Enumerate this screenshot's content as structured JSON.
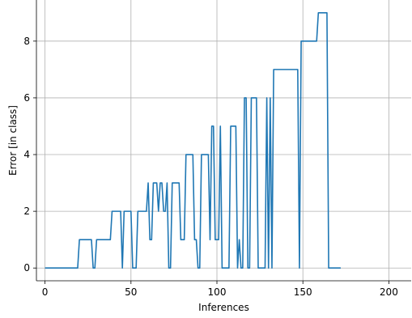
{
  "chart_data": {
    "type": "line",
    "title": "",
    "xlabel": "Inferences",
    "ylabel": "Error [in class]",
    "xlim": [
      -5,
      213
    ],
    "ylim": [
      -0.45,
      9.45
    ],
    "xticks": [
      0,
      50,
      100,
      150,
      200
    ],
    "yticks": [
      0,
      2,
      4,
      6,
      8
    ],
    "grid": true,
    "colors": {
      "line": "#1f77b4"
    },
    "series": [
      {
        "values": [
          [
            0,
            0
          ],
          [
            19,
            0
          ],
          [
            20,
            1
          ],
          [
            27,
            1
          ],
          [
            28,
            0
          ],
          [
            29,
            0
          ],
          [
            30,
            1
          ],
          [
            38,
            1
          ],
          [
            39,
            2
          ],
          [
            44,
            2
          ],
          [
            45,
            0
          ],
          [
            46,
            2
          ],
          [
            50,
            2
          ],
          [
            51,
            0
          ],
          [
            53,
            0
          ],
          [
            54,
            2
          ],
          [
            59,
            2
          ],
          [
            60,
            3
          ],
          [
            61,
            1
          ],
          [
            62,
            1
          ],
          [
            63,
            3
          ],
          [
            65,
            3
          ],
          [
            66,
            2
          ],
          [
            67,
            3
          ],
          [
            68,
            3
          ],
          [
            69,
            2
          ],
          [
            70,
            2
          ],
          [
            71,
            3
          ],
          [
            72,
            0
          ],
          [
            73,
            0
          ],
          [
            74,
            3
          ],
          [
            78,
            3
          ],
          [
            79,
            1
          ],
          [
            81,
            1
          ],
          [
            82,
            4
          ],
          [
            86,
            4
          ],
          [
            87,
            1
          ],
          [
            88,
            1
          ],
          [
            89,
            0
          ],
          [
            90,
            0
          ],
          [
            91,
            4
          ],
          [
            95,
            4
          ],
          [
            96,
            1
          ],
          [
            97,
            5
          ],
          [
            98,
            5
          ],
          [
            99,
            1
          ],
          [
            101,
            1
          ],
          [
            102,
            5
          ],
          [
            103,
            0
          ],
          [
            107,
            0
          ],
          [
            108,
            5
          ],
          [
            111,
            5
          ],
          [
            112,
            0
          ],
          [
            113,
            1
          ],
          [
            114,
            0
          ],
          [
            115,
            0
          ],
          [
            116,
            6
          ],
          [
            117,
            6
          ],
          [
            118,
            0
          ],
          [
            119,
            0
          ],
          [
            120,
            6
          ],
          [
            123,
            6
          ],
          [
            124,
            0
          ],
          [
            128,
            0
          ],
          [
            129,
            6
          ],
          [
            130,
            0
          ],
          [
            131,
            6
          ],
          [
            132,
            0
          ],
          [
            133,
            7
          ],
          [
            147,
            7
          ],
          [
            148,
            0
          ],
          [
            149,
            8
          ],
          [
            158,
            8
          ],
          [
            159,
            9
          ],
          [
            164,
            9
          ],
          [
            165,
            0
          ],
          [
            172,
            0
          ]
        ]
      }
    ]
  }
}
